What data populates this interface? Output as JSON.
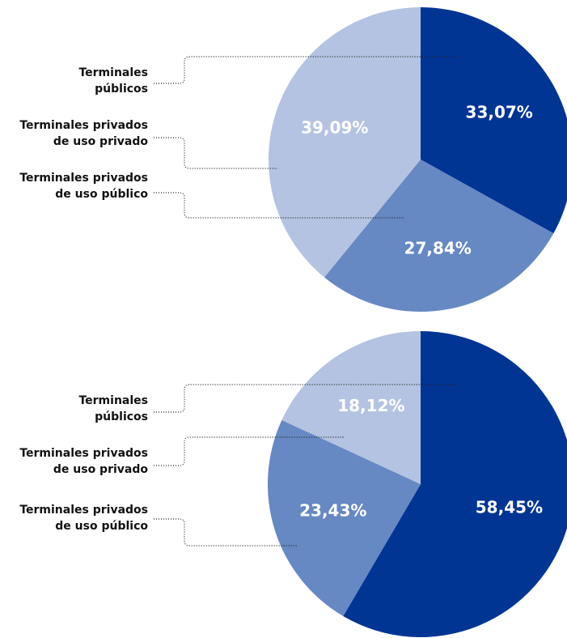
{
  "chart_data": [
    {
      "type": "pie",
      "categories": [
        "Terminales\npúblicos",
        "Terminales privados\nde uso público",
        "Terminales privados\nde uso privado"
      ],
      "values": [
        33.07,
        27.84,
        39.09
      ],
      "value_labels": [
        "33,07%",
        "27,84%",
        "39,09%"
      ],
      "colors": [
        "#003594",
        "#6688c3",
        "#b3c3e1"
      ]
    },
    {
      "type": "pie",
      "categories": [
        "Terminales\npúblicos",
        "Terminales privados\nde uso público",
        "Terminales privados\nde uso privado"
      ],
      "values": [
        58.45,
        23.43,
        18.12
      ],
      "value_labels": [
        "58,45%",
        "23,43%",
        "18,12%"
      ],
      "colors": [
        "#003594",
        "#6688c3",
        "#b3c3e1"
      ]
    }
  ]
}
